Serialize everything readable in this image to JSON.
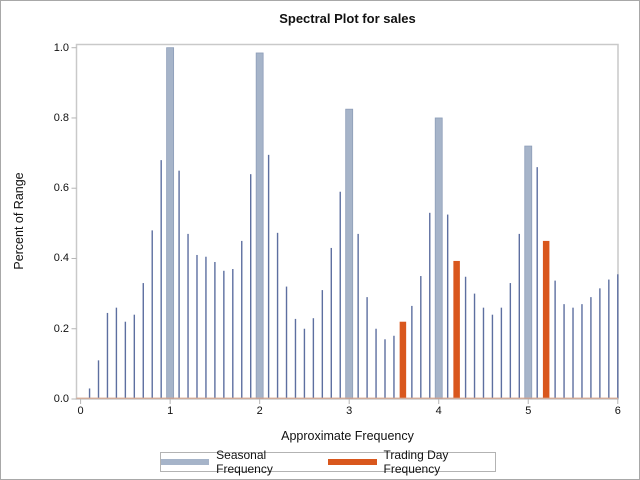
{
  "figure": {
    "background": "#ffffff",
    "border_color": "#a8a8a8"
  },
  "chart_data": {
    "type": "bar",
    "subtype": "needle-spectral-plot",
    "title": "Spectral Plot for sales",
    "xlabel": "Approximate Frequency",
    "ylabel": "Percent of Range",
    "xlim": [
      0,
      6
    ],
    "ylim": [
      0.0,
      1.0
    ],
    "grid": false,
    "xtick_labels": [
      "0",
      "1",
      "2",
      "3",
      "4",
      "5",
      "6"
    ],
    "ytick_labels": [
      "0.0",
      "0.2",
      "0.4",
      "0.6",
      "0.8",
      "1.0"
    ],
    "x_step": 0.1,
    "x": [
      0.0,
      0.1,
      0.2,
      0.3,
      0.4,
      0.5,
      0.6,
      0.7,
      0.8,
      0.9,
      1.0,
      1.1,
      1.2,
      1.3,
      1.4,
      1.5,
      1.6,
      1.7,
      1.8,
      1.9,
      2.0,
      2.1,
      2.2,
      2.3,
      2.4,
      2.5,
      2.6,
      2.7,
      2.8,
      2.9,
      3.0,
      3.1,
      3.2,
      3.3,
      3.4,
      3.5,
      3.6,
      3.7,
      3.8,
      3.9,
      4.0,
      4.1,
      4.2,
      4.3,
      4.4,
      4.5,
      4.6,
      4.7,
      4.8,
      4.9,
      5.0,
      5.1,
      5.2,
      5.3,
      5.4,
      5.5,
      5.6,
      5.7,
      5.8,
      5.9,
      6.0
    ],
    "values": [
      0.0,
      0.03,
      0.11,
      0.245,
      0.26,
      0.22,
      0.24,
      0.33,
      0.48,
      0.68,
      1.0,
      0.65,
      0.47,
      0.41,
      0.405,
      0.39,
      0.365,
      0.37,
      0.45,
      0.64,
      0.985,
      0.695,
      0.473,
      0.32,
      0.228,
      0.2,
      0.23,
      0.31,
      0.43,
      0.59,
      0.825,
      0.47,
      0.29,
      0.2,
      0.17,
      0.18,
      0.22,
      0.265,
      0.35,
      0.53,
      0.8,
      0.525,
      0.393,
      0.348,
      0.3,
      0.26,
      0.24,
      0.26,
      0.33,
      0.47,
      0.72,
      0.66,
      0.45,
      0.337,
      0.27,
      0.26,
      0.27,
      0.29,
      0.315,
      0.34,
      0.355
    ],
    "seasonal_frequencies": [
      1.0,
      2.0,
      3.0,
      4.0,
      5.0
    ],
    "trading_day_frequencies": [
      3.6,
      4.2,
      5.2
    ],
    "legend": {
      "position": "bottom",
      "entries": [
        {
          "label": "Seasonal Frequency",
          "color": "#a6b4c9"
        },
        {
          "label": "Trading Day Frequency",
          "color": "#d9571d"
        }
      ]
    },
    "colors": {
      "needle": "#5d6fa0",
      "seasonal_fill": "#a6b4c9",
      "seasonal_border": "#8d9db8",
      "trading_day": "#d9571d",
      "frame": "#c9c9c9",
      "tick": "#b5b5b5",
      "baseline": "#d4a28a"
    }
  }
}
